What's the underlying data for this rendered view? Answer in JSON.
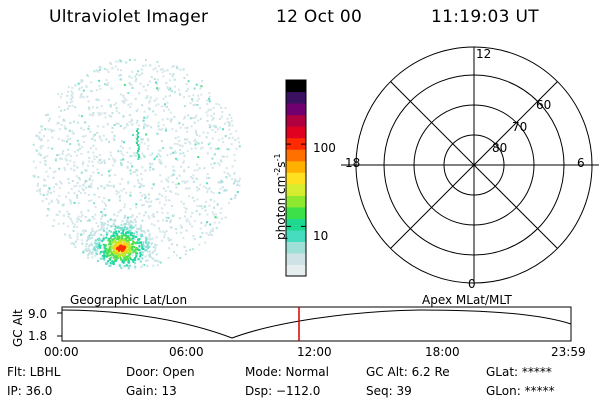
{
  "header": {
    "instrument": "Ultraviolet Imager",
    "date": "12 Oct 00",
    "time": "11:19:03 UT"
  },
  "colorbar": {
    "unit": "photon cm",
    "unit_exp1": "-2",
    "unit_mid": "s",
    "unit_exp2": "-1",
    "ticks": [
      "100",
      "10"
    ],
    "tick_values": [
      100,
      10
    ],
    "range": [
      2.5,
      600
    ],
    "colors": [
      "#e6eef0",
      "#cfe3e6",
      "#9ee0d8",
      "#45dcc0",
      "#1fd890",
      "#3ee04a",
      "#8ee830",
      "#d6ec2e",
      "#ffe020",
      "#ffb000",
      "#ff7000",
      "#ff2a00",
      "#e00020",
      "#b00040",
      "#700070",
      "#3a1060",
      "#000000"
    ]
  },
  "polar_plot": {
    "labels": [
      "12",
      "60",
      "70",
      "80",
      "18",
      "6",
      "0"
    ],
    "label_names": [
      "mlt-12-label",
      "lat-60-label",
      "lat-70-label",
      "lat-80-label",
      "mlt-18-label",
      "mlt-6-label",
      "mlt-0-label"
    ]
  },
  "image_labels": {
    "left": "Geographic Lat/Lon",
    "right": "Apex MLat/MLT"
  },
  "timeline": {
    "ylabel": "GC Alt",
    "yticks": [
      "9.0",
      "1.8"
    ],
    "xticks": [
      "00:00",
      "06:00",
      "12:00",
      "18:00",
      "23:59"
    ],
    "current_time_color": "#d00000"
  },
  "status": {
    "flt": "Flt: LBHL",
    "ip": "IP: 36.0",
    "door": "Door: Open",
    "gain": "Gain: 13",
    "mode": "Mode: Normal",
    "dsp": "Dsp: −112.0",
    "gcalt": "GC Alt: 6.2 Re",
    "seq": "Seq: 39",
    "glat": "GLat: *****",
    "glon": "GLon: *****"
  }
}
